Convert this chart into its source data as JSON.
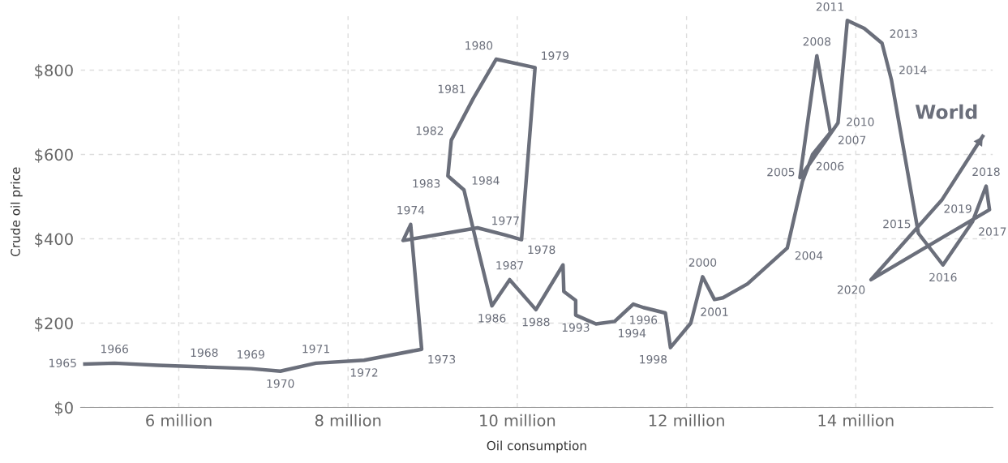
{
  "chart_data": {
    "type": "line",
    "xlabel": "Oil consumption",
    "ylabel": "Crude oil price",
    "x": [
      4.89,
      5.24,
      5.75,
      6.3,
      6.85,
      7.2,
      7.62,
      8.19,
      8.87,
      8.74,
      8.65,
      9.53,
      9.86,
      10.05,
      10.21,
      9.75,
      9.48,
      9.22,
      9.18,
      9.37,
      9.53,
      9.7,
      9.91,
      10.22,
      10.54,
      10.55,
      10.69,
      10.69,
      10.93,
      11.15,
      11.37,
      11.49,
      11.75,
      11.81,
      12.05,
      12.19,
      12.33,
      12.43,
      12.72,
      13.19,
      13.37,
      13.49,
      13.7,
      13.54,
      13.34,
      13.79,
      13.9,
      14.1,
      14.31,
      14.42,
      14.74,
      15.03,
      15.38,
      15.54,
      15.58,
      14.18,
      15.02,
      15.5
    ],
    "series": [
      {
        "name": "World",
        "color": "#6b6f7b",
        "values": [
          103,
          105,
          100,
          96,
          92,
          86,
          105,
          112,
          138,
          434,
          396,
          426,
          409,
          398,
          806,
          826,
          733,
          634,
          549,
          516,
          380,
          241,
          303,
          232,
          338,
          275,
          254,
          219,
          198,
          204,
          245,
          237,
          224,
          142,
          200,
          310,
          256,
          260,
          293,
          378,
          536,
          600,
          652,
          834,
          545,
          675,
          918,
          899,
          864,
          778,
          413,
          338,
          441,
          525,
          469,
          303,
          493,
          643
        ]
      }
    ],
    "xlim": [
      4.84,
      15.62
    ],
    "ylim": [
      0,
      928
    ],
    "xticks": [
      {
        "value": 6,
        "label": "6 million"
      },
      {
        "value": 8,
        "label": "8 million"
      },
      {
        "value": 10,
        "label": "10 million"
      },
      {
        "value": 12,
        "label": "12 million"
      },
      {
        "value": 14,
        "label": "14 million"
      }
    ],
    "yticks": [
      {
        "value": 0,
        "label": "$0"
      },
      {
        "value": 200,
        "label": "$200"
      },
      {
        "value": 400,
        "label": "$400"
      },
      {
        "value": 600,
        "label": "$600"
      },
      {
        "value": 800,
        "label": "$800"
      }
    ],
    "grid": true,
    "marker": "none",
    "line_style": "solid",
    "legend": false,
    "annotations": [
      {
        "text": "1965",
        "x": 4.89,
        "y": 103
      },
      {
        "text": "1966",
        "x": 5.24,
        "y": 105
      },
      {
        "text": "1968",
        "x": 6.3,
        "y": 96
      },
      {
        "text": "1969",
        "x": 6.85,
        "y": 92
      },
      {
        "text": "1970",
        "x": 7.2,
        "y": 86
      },
      {
        "text": "1971",
        "x": 7.62,
        "y": 105
      },
      {
        "text": "1972",
        "x": 8.19,
        "y": 112
      },
      {
        "text": "1973",
        "x": 8.87,
        "y": 138
      },
      {
        "text": "1974",
        "x": 8.74,
        "y": 434
      },
      {
        "text": "1977",
        "x": 9.86,
        "y": 409
      },
      {
        "text": "1978",
        "x": 10.05,
        "y": 398
      },
      {
        "text": "1979",
        "x": 10.21,
        "y": 806
      },
      {
        "text": "1980",
        "x": 9.75,
        "y": 826
      },
      {
        "text": "1981",
        "x": 9.48,
        "y": 733
      },
      {
        "text": "1982",
        "x": 9.22,
        "y": 634
      },
      {
        "text": "1983",
        "x": 9.18,
        "y": 549
      },
      {
        "text": "1984",
        "x": 9.37,
        "y": 516
      },
      {
        "text": "1986",
        "x": 9.7,
        "y": 241
      },
      {
        "text": "1987",
        "x": 9.91,
        "y": 303
      },
      {
        "text": "1988",
        "x": 10.22,
        "y": 232
      },
      {
        "text": "1993",
        "x": 10.69,
        "y": 219
      },
      {
        "text": "1994",
        "x": 11.15,
        "y": 204
      },
      {
        "text": "1996",
        "x": 11.49,
        "y": 237
      },
      {
        "text": "1998",
        "x": 11.81,
        "y": 142
      },
      {
        "text": "2000",
        "x": 12.19,
        "y": 310
      },
      {
        "text": "2001",
        "x": 12.33,
        "y": 256
      },
      {
        "text": "2004",
        "x": 13.19,
        "y": 378
      },
      {
        "text": "2005",
        "x": 13.37,
        "y": 536
      },
      {
        "text": "2006",
        "x": 13.49,
        "y": 600
      },
      {
        "text": "2007",
        "x": 13.7,
        "y": 652
      },
      {
        "text": "2008",
        "x": 13.54,
        "y": 834
      },
      {
        "text": "2010",
        "x": 13.79,
        "y": 675
      },
      {
        "text": "2011",
        "x": 13.9,
        "y": 918
      },
      {
        "text": "2013",
        "x": 14.31,
        "y": 864
      },
      {
        "text": "2014",
        "x": 14.42,
        "y": 778
      },
      {
        "text": "2015",
        "x": 14.74,
        "y": 413
      },
      {
        "text": "2016",
        "x": 15.03,
        "y": 338
      },
      {
        "text": "2017",
        "x": 15.38,
        "y": 441
      },
      {
        "text": "2018",
        "x": 15.54,
        "y": 525
      },
      {
        "text": "2019",
        "x": 15.58,
        "y": 469
      },
      {
        "text": "2020",
        "x": 14.18,
        "y": 303
      }
    ]
  }
}
